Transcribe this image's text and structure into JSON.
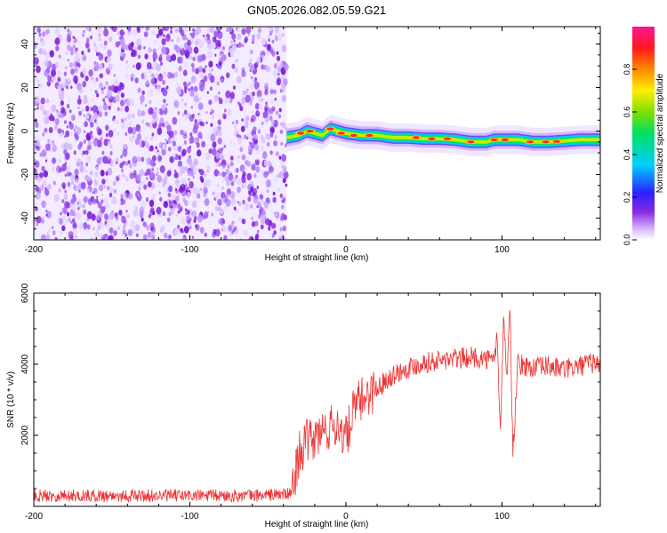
{
  "title": "GN05.2026.082.05.59.G21",
  "chart_data": [
    {
      "type": "heatmap",
      "title": "GN05.2026.082.05.59.G21",
      "xlabel": "Height of straight line (km)",
      "ylabel": "Frequency (Hz)",
      "xlim": [
        -200,
        163
      ],
      "ylim": [
        -50,
        48
      ],
      "xticks": [
        -200,
        -100,
        0,
        100
      ],
      "yticks": [
        -40,
        -20,
        0,
        20,
        40
      ],
      "colorbar": {
        "label": "Normalized spectral amplitude",
        "range": [
          0,
          1
        ],
        "ticks": [
          "0.0",
          "0.2",
          "0.4",
          "0.6",
          "0.8"
        ]
      },
      "noise_region_x": [
        -200,
        -38
      ],
      "ridge": [
        {
          "x": -38,
          "y": -3
        },
        {
          "x": -30,
          "y": -2
        },
        {
          "x": -25,
          "y": 0
        },
        {
          "x": -20,
          "y": -1
        },
        {
          "x": -15,
          "y": -2
        },
        {
          "x": -10,
          "y": 1
        },
        {
          "x": -5,
          "y": 0
        },
        {
          "x": 0,
          "y": -1
        },
        {
          "x": 10,
          "y": -2
        },
        {
          "x": 20,
          "y": -2
        },
        {
          "x": 30,
          "y": -3
        },
        {
          "x": 40,
          "y": -3
        },
        {
          "x": 50,
          "y": -3.5
        },
        {
          "x": 60,
          "y": -3.5
        },
        {
          "x": 70,
          "y": -4
        },
        {
          "x": 80,
          "y": -5
        },
        {
          "x": 90,
          "y": -5
        },
        {
          "x": 95,
          "y": -4
        },
        {
          "x": 100,
          "y": -4
        },
        {
          "x": 110,
          "y": -4
        },
        {
          "x": 120,
          "y": -5
        },
        {
          "x": 130,
          "y": -5
        },
        {
          "x": 140,
          "y": -4.5
        },
        {
          "x": 150,
          "y": -4
        },
        {
          "x": 163,
          "y": -4
        }
      ]
    },
    {
      "type": "line",
      "xlabel": "Height of straight line (km)",
      "ylabel": "SNR (10 * v/v)",
      "xlim": [
        -200,
        163
      ],
      "ylim": [
        0,
        6000
      ],
      "xticks": [
        -200,
        -100,
        0,
        100
      ],
      "yticks": [
        2000,
        4000,
        6000
      ],
      "color": "#ee3333",
      "series": [
        {
          "name": "SNR",
          "x": [
            -200,
            -150,
            -100,
            -60,
            -35,
            -30,
            -25,
            -20,
            -15,
            -10,
            -5,
            0,
            5,
            10,
            15,
            20,
            25,
            30,
            40,
            50,
            60,
            70,
            80,
            90,
            95,
            97,
            99,
            101,
            103,
            105,
            107,
            110,
            120,
            130,
            140,
            150,
            155,
            160,
            163
          ],
          "y": [
            300,
            300,
            300,
            300,
            350,
            1500,
            1800,
            1900,
            2100,
            2200,
            2300,
            1900,
            2700,
            3000,
            3200,
            3300,
            3550,
            3700,
            3900,
            4050,
            4100,
            4150,
            4200,
            4150,
            4100,
            4800,
            2000,
            5500,
            3500,
            5800,
            1500,
            4000,
            3900,
            3950,
            3850,
            3950,
            4000,
            4050,
            3950
          ]
        }
      ]
    }
  ]
}
